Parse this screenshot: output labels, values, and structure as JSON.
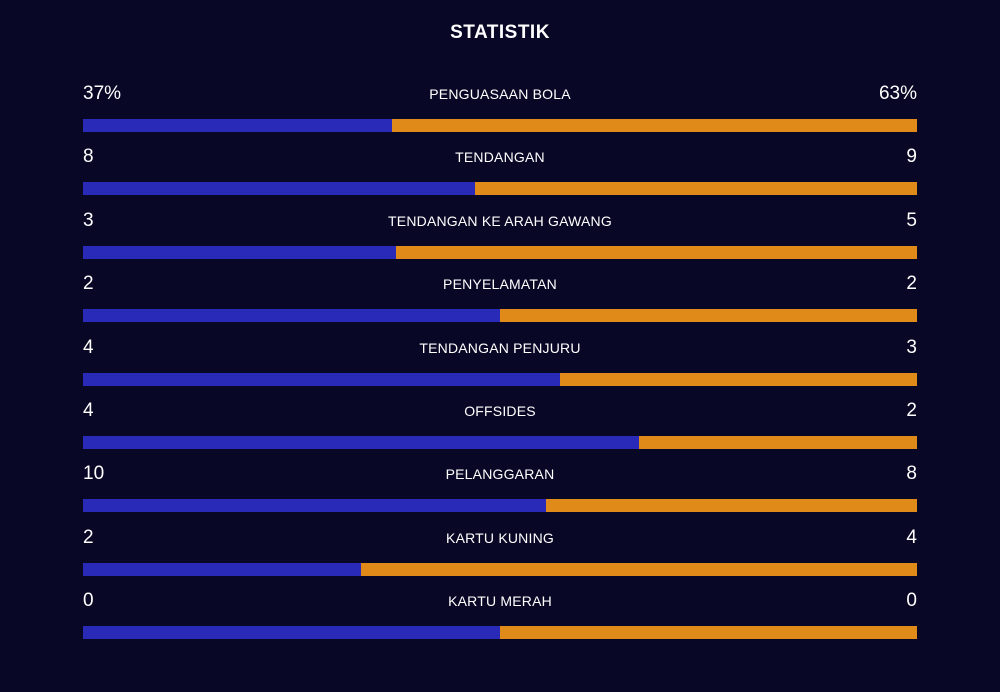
{
  "title": "STATISTIK",
  "colors": {
    "background": "#080826",
    "home_bar": "#2a2ab8",
    "away_bar": "#e08a1a"
  },
  "stats": [
    {
      "label": "PENGUASAAN BOLA",
      "home": "37%",
      "away": "63%",
      "home_share": 0.37
    },
    {
      "label": "TENDANGAN",
      "home": "8",
      "away": "9",
      "home_share": 0.4706
    },
    {
      "label": "TENDANGAN KE ARAH GAWANG",
      "home": "3",
      "away": "5",
      "home_share": 0.375
    },
    {
      "label": "PENYELAMATAN",
      "home": "2",
      "away": "2",
      "home_share": 0.5
    },
    {
      "label": "TENDANGAN PENJURU",
      "home": "4",
      "away": "3",
      "home_share": 0.5714
    },
    {
      "label": "OFFSIDES",
      "home": "4",
      "away": "2",
      "home_share": 0.6667
    },
    {
      "label": "PELANGGARAN",
      "home": "10",
      "away": "8",
      "home_share": 0.5556
    },
    {
      "label": "KARTU KUNING",
      "home": "2",
      "away": "4",
      "home_share": 0.3333
    },
    {
      "label": "KARTU MERAH",
      "home": "0",
      "away": "0",
      "home_share": 0.5
    }
  ]
}
